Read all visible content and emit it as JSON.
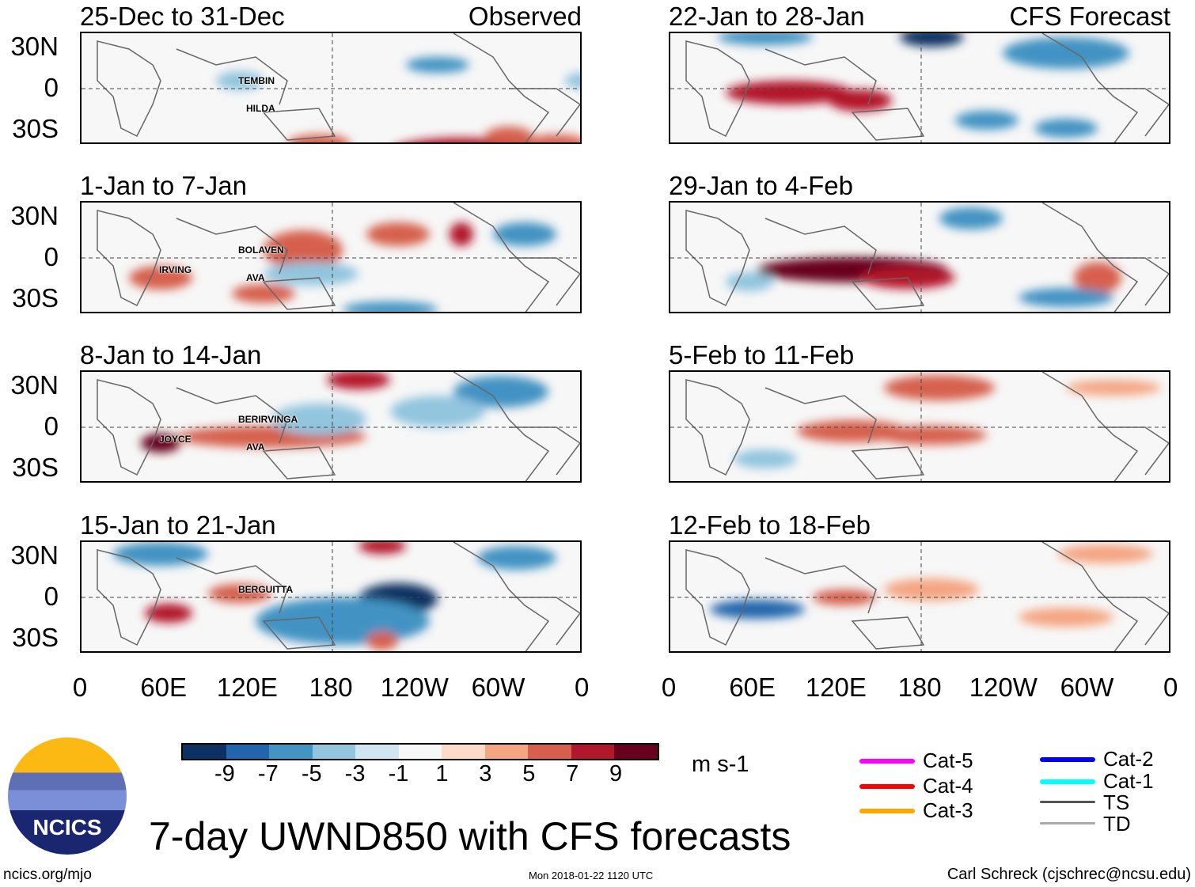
{
  "panels": [
    {
      "title": "25-Dec to 31-Dec",
      "tag": "Observed",
      "storms": [
        "TEMBIN",
        "HILDA"
      ]
    },
    {
      "title": "1-Jan to 7-Jan",
      "tag": "",
      "storms": [
        "BOLAVEN",
        "AVA",
        "IRVING"
      ]
    },
    {
      "title": "8-Jan to 14-Jan",
      "tag": "",
      "storms": [
        "BERIRVINGA",
        "AVA",
        "JOYCE"
      ]
    },
    {
      "title": "15-Jan to 21-Jan",
      "tag": "",
      "storms": [
        "BERGUITTA"
      ]
    },
    {
      "title": "22-Jan to 28-Jan",
      "tag": "CFS Forecast",
      "storms": []
    },
    {
      "title": "29-Jan to 4-Feb",
      "tag": "",
      "storms": []
    },
    {
      "title": "5-Feb to 11-Feb",
      "tag": "",
      "storms": []
    },
    {
      "title": "12-Feb to 18-Feb",
      "tag": "",
      "storms": []
    }
  ],
  "chart_data": {
    "type": "heatmap",
    "title": "7-day UWND850 with CFS forecasts",
    "variable": "850-hPa zonal wind anomaly",
    "units": "m s-1",
    "lat_ticks": [
      "30N",
      "0",
      "30S"
    ],
    "lon_ticks": [
      "0",
      "60E",
      "120E",
      "180",
      "120W",
      "60W",
      "0"
    ],
    "colorbar": {
      "ticks": [
        "-9",
        "-7",
        "-5",
        "-3",
        "-1",
        "1",
        "3",
        "5",
        "7",
        "9"
      ],
      "colors": [
        "#0b3262",
        "#2166ac",
        "#4393c3",
        "#92c5de",
        "#d1e5f0",
        "#f7f7f7",
        "#fddbc7",
        "#f4a582",
        "#d6604d",
        "#b2182b",
        "#67001f"
      ]
    },
    "legend": [
      {
        "label": "Cat-5",
        "color": "#ff00ff"
      },
      {
        "label": "Cat-4",
        "color": "#ff0000"
      },
      {
        "label": "Cat-3",
        "color": "#ffa500"
      },
      {
        "label": "Cat-2",
        "color": "#0000ff"
      },
      {
        "label": "Cat-1",
        "color": "#00ffff"
      },
      {
        "label": "TS",
        "color": "#555555"
      },
      {
        "label": "TD",
        "color": "#aaaaaa"
      }
    ]
  },
  "footer": {
    "left": "ncics.org/mjo",
    "center": "Mon 2018-01-22 1120 UTC",
    "right": "Carl Schreck (cjschrec@ncsu.edu)",
    "logo": "NCICS"
  }
}
